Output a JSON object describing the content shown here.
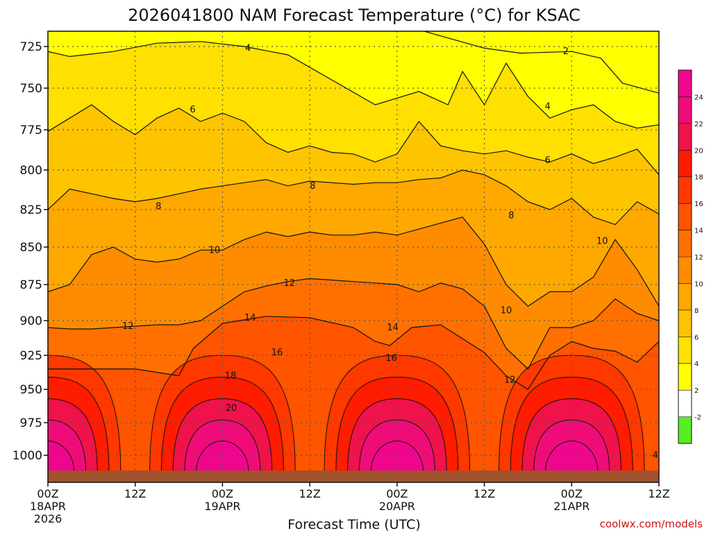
{
  "chart_data": {
    "type": "heatmap",
    "title": "2026041800 NAM Forecast Temperature (°C) for KSAC",
    "xlabel": "Forecast Time (UTC)",
    "ylabel": "",
    "xlim_hours": [
      0,
      84
    ],
    "ylim_hpa": [
      1013,
      713
    ],
    "y_ticks": [
      "725",
      "750",
      "775",
      "800",
      "825",
      "850",
      "875",
      "900",
      "925",
      "950",
      "975",
      "1000"
    ],
    "x_ticks": [
      {
        "hour": 0,
        "label": "00Z",
        "date": "18APR",
        "year": "2026"
      },
      {
        "hour": 12,
        "label": "12Z",
        "date": "",
        "year": ""
      },
      {
        "hour": 24,
        "label": "00Z",
        "date": "19APR",
        "year": ""
      },
      {
        "hour": 36,
        "label": "12Z",
        "date": "",
        "year": ""
      },
      {
        "hour": 48,
        "label": "00Z",
        "date": "20APR",
        "year": ""
      },
      {
        "hour": 60,
        "label": "12Z",
        "date": "",
        "year": ""
      },
      {
        "hour": 72,
        "label": "00Z",
        "date": "21APR",
        "year": ""
      },
      {
        "hour": 84,
        "label": "12Z",
        "date": "",
        "year": ""
      }
    ],
    "grid": true,
    "colorbar": {
      "ticks": [
        "-2",
        "2",
        "4",
        "6",
        "8",
        "10",
        "12",
        "14",
        "16",
        "18",
        "20",
        "22",
        "24"
      ],
      "colors": [
        "#55ee22",
        "#ffffff",
        "#ffff00",
        "#ffe000",
        "#ffc400",
        "#ffa800",
        "#ff8c00",
        "#ff7000",
        "#ff5400",
        "#ff3800",
        "#ff1c00",
        "#f0124a",
        "#f00c78",
        "#f0068c"
      ]
    },
    "contour_levels": [
      2,
      4,
      6,
      8,
      10,
      12,
      14,
      16,
      18,
      20
    ],
    "contours": [
      {
        "level": 2,
        "hours": [
          49.4,
          60,
          65,
          72,
          76,
          79,
          84
        ],
        "hpa": [
          713,
          726,
          729,
          728,
          732,
          747,
          753
        ]
      },
      {
        "level": 4,
        "hours": [
          0,
          3,
          9,
          15,
          21,
          27,
          33,
          39,
          45,
          51,
          55,
          57,
          60,
          63,
          66,
          69,
          72,
          75,
          78,
          81,
          84
        ],
        "hpa": [
          728,
          731,
          728,
          723,
          722,
          725,
          730,
          745,
          760,
          752,
          760,
          740,
          760,
          735,
          755,
          768,
          763,
          760,
          770,
          774,
          772
        ]
      },
      {
        "level": 6,
        "hours": [
          0,
          3,
          6,
          9,
          12,
          15,
          18,
          21,
          24,
          27,
          30,
          33,
          36,
          39,
          42,
          45,
          48,
          51,
          54,
          57,
          60,
          63,
          66,
          69,
          72,
          75,
          78,
          81,
          84
        ],
        "hpa": [
          776,
          768,
          760,
          770,
          778,
          768,
          762,
          770,
          765,
          770,
          783,
          789,
          785,
          789,
          790,
          795,
          790,
          770,
          785,
          788,
          790,
          788,
          792,
          795,
          790,
          796,
          792,
          787,
          803
        ]
      },
      {
        "level": 8,
        "hours": [
          0,
          3,
          6,
          9,
          12,
          15,
          18,
          21,
          24,
          27,
          30,
          33,
          36,
          39,
          42,
          45,
          48,
          51,
          54,
          57,
          60,
          63,
          66,
          69,
          72,
          75,
          78,
          81,
          84
        ],
        "hpa": [
          825,
          812,
          815,
          818,
          820,
          818,
          815,
          812,
          810,
          808,
          806,
          810,
          807,
          808,
          809,
          808,
          808,
          806,
          805,
          800,
          803,
          810,
          820,
          825,
          818,
          830,
          835,
          820,
          828
        ]
      },
      {
        "level": 10,
        "hours": [
          0,
          3,
          6,
          9,
          12,
          15,
          18,
          21,
          24,
          27,
          30,
          33,
          36,
          39,
          42,
          45,
          48,
          51,
          54,
          57,
          60,
          63,
          66,
          69,
          72,
          75,
          78,
          81,
          84
        ],
        "hpa": [
          880,
          875,
          855,
          850,
          858,
          860,
          858,
          852,
          852,
          845,
          840,
          843,
          840,
          842,
          842,
          840,
          842,
          838,
          834,
          830,
          848,
          875,
          890,
          880,
          880,
          870,
          845,
          865,
          890
        ]
      },
      {
        "level": 12,
        "hours": [
          0,
          3,
          6,
          9,
          12,
          15,
          18,
          21,
          24,
          27,
          30,
          33,
          36,
          39,
          42,
          45,
          48,
          51,
          54,
          57,
          60,
          63,
          66,
          69,
          72,
          75,
          78,
          81,
          84
        ],
        "hpa": [
          905,
          906,
          906,
          905,
          904,
          903,
          903,
          900,
          890,
          880,
          876,
          873,
          871,
          872,
          873,
          874,
          875,
          880,
          874,
          878,
          890,
          920,
          935,
          905,
          905,
          900,
          885,
          895,
          900
        ]
      },
      {
        "level": 14,
        "hours": [
          0,
          6,
          12,
          18,
          20,
          24,
          30,
          36,
          42,
          45,
          47,
          50,
          54,
          57,
          60,
          63,
          66,
          69,
          72,
          75,
          78,
          81,
          84
        ],
        "hpa": [
          935,
          935,
          935,
          940,
          920,
          902,
          897,
          898,
          905,
          915,
          918,
          905,
          903,
          913,
          923,
          940,
          950,
          925,
          915,
          920,
          922,
          930,
          915
        ]
      }
    ],
    "contour_labels": [
      {
        "text": "2",
        "hour": 71.2,
        "hpa": 728
      },
      {
        "text": "4",
        "hour": 27.5,
        "hpa": 726
      },
      {
        "text": "4",
        "hour": 68.7,
        "hpa": 761
      },
      {
        "text": "6",
        "hour": 19.9,
        "hpa": 763
      },
      {
        "text": "6",
        "hour": 68.7,
        "hpa": 794
      },
      {
        "text": "8",
        "hour": 15.2,
        "hpa": 823
      },
      {
        "text": "8",
        "hour": 36.4,
        "hpa": 810
      },
      {
        "text": "8",
        "hour": 63.7,
        "hpa": 829
      },
      {
        "text": "10",
        "hour": 22.9,
        "hpa": 852
      },
      {
        "text": "10",
        "hour": 76.2,
        "hpa": 846
      },
      {
        "text": "10",
        "hour": 63.0,
        "hpa": 893
      },
      {
        "text": "12",
        "hour": 33.2,
        "hpa": 874
      },
      {
        "text": "12",
        "hour": 11.0,
        "hpa": 904
      },
      {
        "text": "12",
        "hour": 63.5,
        "hpa": 943
      },
      {
        "text": "14",
        "hour": 27.8,
        "hpa": 898
      },
      {
        "text": "14",
        "hour": 47.4,
        "hpa": 905
      },
      {
        "text": "16",
        "hour": 31.5,
        "hpa": 923
      },
      {
        "text": "16",
        "hour": 47.2,
        "hpa": 927
      },
      {
        "text": "18",
        "hour": 25.1,
        "hpa": 940
      },
      {
        "text": "20",
        "hour": 25.2,
        "hpa": 964
      },
      {
        "text": "4",
        "hour": 83.5,
        "hpa": 1000
      }
    ],
    "warm_cores": [
      {
        "hour": 0,
        "peak_hpa": 1000,
        "max_temp": 24
      },
      {
        "hour": 24,
        "peak_hpa": 1000,
        "max_temp": 24
      },
      {
        "hour": 48,
        "peak_hpa": 1000,
        "max_temp": 24
      },
      {
        "hour": 72,
        "peak_hpa": 995,
        "max_temp": 24
      }
    ]
  },
  "credit": "coolwx.com/models"
}
